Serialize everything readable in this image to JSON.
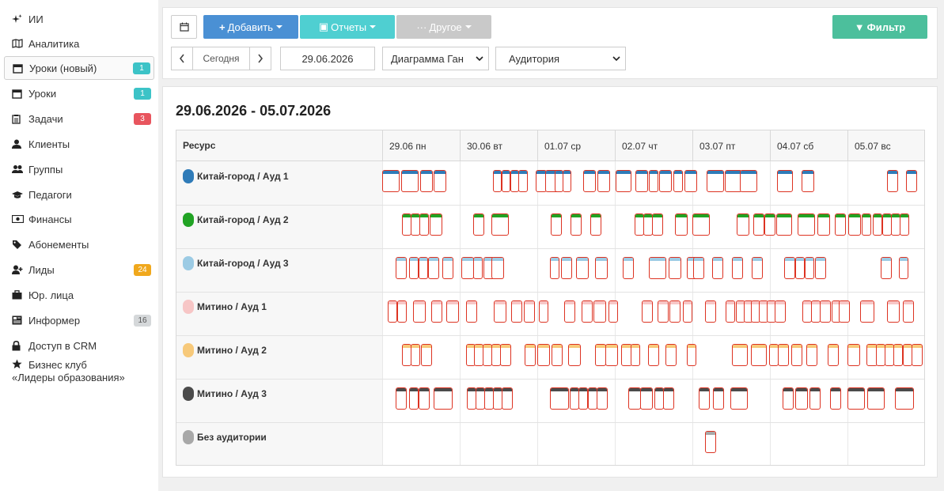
{
  "sidebar": {
    "items": [
      {
        "label": "ИИ",
        "icon": "sparkles-icon"
      },
      {
        "label": "Аналитика",
        "icon": "map-icon"
      },
      {
        "label": "Уроки (новый)",
        "icon": "calendar-icon",
        "badge": "1",
        "badge_color": "#3cc3c7",
        "active": true
      },
      {
        "label": "Уроки",
        "icon": "calendar-icon",
        "badge": "1",
        "badge_color": "#3cc3c7"
      },
      {
        "label": "Задачи",
        "icon": "clipboard-icon",
        "badge": "3",
        "badge_color": "#e8555e"
      },
      {
        "label": "Клиенты",
        "icon": "user-icon"
      },
      {
        "label": "Группы",
        "icon": "users-icon"
      },
      {
        "label": "Педагоги",
        "icon": "graduation-cap-icon"
      },
      {
        "label": "Финансы",
        "icon": "money-icon"
      },
      {
        "label": "Абонементы",
        "icon": "tag-icon"
      },
      {
        "label": "Лиды",
        "icon": "user-plus-icon",
        "badge": "24",
        "badge_color": "#f0a81d"
      },
      {
        "label": "Юр. лица",
        "icon": "briefcase-icon"
      },
      {
        "label": "Информер",
        "icon": "newspaper-icon",
        "badge": "16",
        "badge_color": "#d5d8da",
        "badge_text_color": "#555"
      },
      {
        "label": "Доступ в CRM",
        "icon": "lock-icon"
      },
      {
        "label": "Бизнес клуб «Лидеры образования»",
        "icon": "star-icon",
        "line1": "Бизнес клуб",
        "line2": "«Лидеры образования»"
      }
    ]
  },
  "toolbar": {
    "calendar_button_icon": "calendar-icon",
    "add_label": "Добавить",
    "reports_label": "Отчеты",
    "other_label": "Другое",
    "filter_label": "Фильтр",
    "today_label": "Сегодня",
    "date_value": "29.06.2026",
    "view_select": "Диаграмма Ган",
    "group_select": "Аудитория"
  },
  "calendar": {
    "range_title": "29.06.2026 - 05.07.2026",
    "resource_header": "Ресурс",
    "days": [
      "29.06 пн",
      "30.06 вт",
      "01.07 ср",
      "02.07 чт",
      "03.07 пт",
      "04.07 сб",
      "05.07 вс"
    ],
    "resources": [
      {
        "name": "Китай-город / Ауд 1",
        "color": "#2f7bb8"
      },
      {
        "name": "Китай-город / Ауд 2",
        "color": "#21a324"
      },
      {
        "name": "Китай-город / Ауд 3",
        "color": "#9ccbe4"
      },
      {
        "name": "Митино / Ауд 1",
        "color": "#f7c6c6"
      },
      {
        "name": "Митино / Ауд 2",
        "color": "#f7c97a"
      },
      {
        "name": "Митино / Ауд 3",
        "color": "#4b4b4b"
      },
      {
        "name": "Без аудитории",
        "color": "#a8a8a8"
      }
    ]
  }
}
